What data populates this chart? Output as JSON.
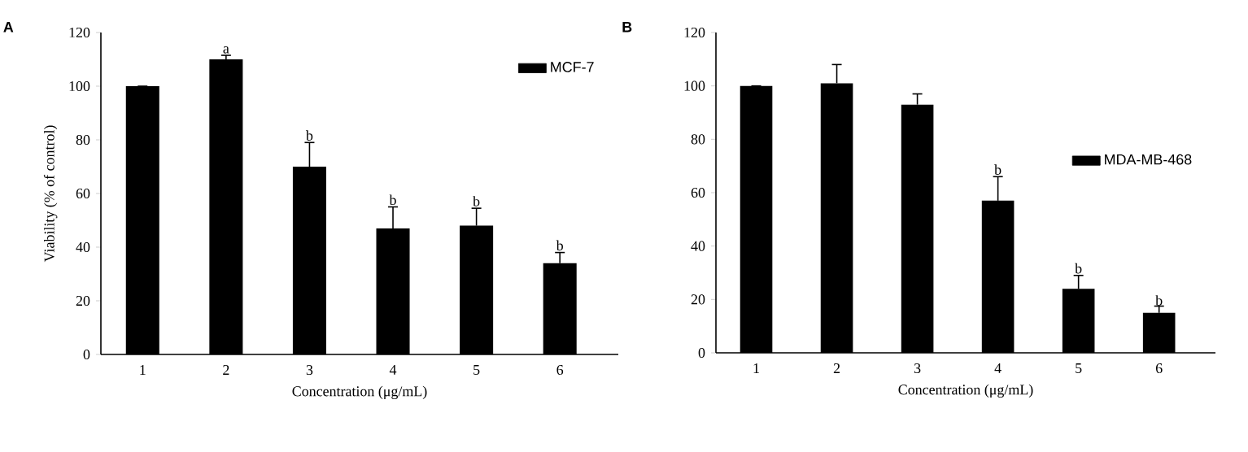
{
  "chart_data": [
    {
      "type": "bar",
      "title": "A",
      "xlabel": "Concentration (μg/mL)",
      "ylabel": "Viability (% of control)",
      "x": [
        1,
        2,
        3,
        4,
        5,
        6
      ],
      "xlim": [
        0.5,
        6.7
      ],
      "xticks": [
        1,
        2,
        3,
        4,
        5,
        6
      ],
      "ylim": [
        0,
        120
      ],
      "yticks": [
        0,
        20,
        40,
        60,
        80,
        100,
        120
      ],
      "series": [
        {
          "name": "MCF-7",
          "color": "#000000",
          "values": [
            100,
            110,
            70,
            47,
            48,
            34
          ],
          "errors": [
            0,
            1.5,
            9,
            8,
            6.5,
            4
          ]
        }
      ],
      "annotations": [
        {
          "text": "a",
          "x": 2,
          "y": 111.5
        },
        {
          "text": "b",
          "x": 3,
          "y": 79
        },
        {
          "text": "b",
          "x": 4,
          "y": 55
        },
        {
          "text": "b",
          "x": 5,
          "y": 54.5
        },
        {
          "text": "b",
          "x": 6,
          "y": 38
        }
      ],
      "legend": "top right",
      "grid": false
    },
    {
      "type": "bar",
      "title": "B",
      "xlabel": "Concentration (μg/mL)",
      "x": [
        1,
        2,
        3,
        4,
        5,
        6
      ],
      "xlim": [
        0.5,
        6.7
      ],
      "xticks": [
        1,
        2,
        3,
        4,
        5,
        6
      ],
      "ylim": [
        0,
        120
      ],
      "yticks": [
        0,
        20,
        40,
        60,
        80,
        100,
        120
      ],
      "series": [
        {
          "name": "MDA-MB-468",
          "color": "#000000",
          "values": [
            100,
            101,
            93,
            57,
            24,
            15
          ],
          "errors": [
            0,
            7,
            4,
            9,
            5,
            2.5
          ]
        }
      ],
      "annotations": [
        {
          "text": "b",
          "x": 4,
          "y": 66
        },
        {
          "text": "b",
          "x": 5,
          "y": 29
        },
        {
          "text": "b",
          "x": 6,
          "y": 17
        }
      ],
      "legend": "right",
      "grid": false
    }
  ]
}
